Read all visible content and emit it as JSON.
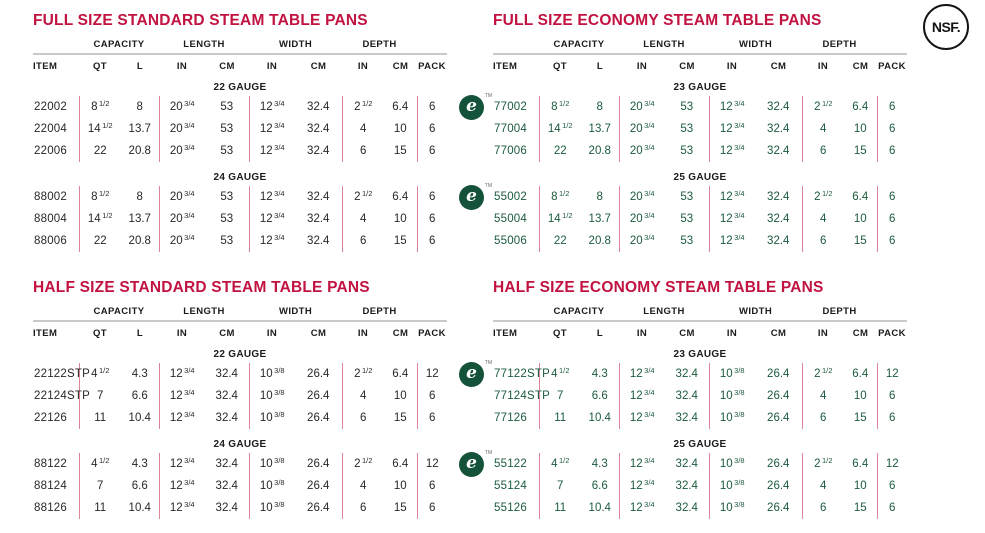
{
  "brand_colors": {
    "title_red": "#C11240",
    "economy_green": "#1B5B3D",
    "eco_badge_green": "#14523A",
    "divider_pink": "#DE8498",
    "rule_gray": "#C9C9CB",
    "text_dark": "#2B2728"
  },
  "nsf_badge": {
    "text": "NSF."
  },
  "eco_badge": {
    "letter": "e",
    "tm": "TM"
  },
  "headers": {
    "groups": [
      "CAPACITY",
      "LENGTH",
      "WIDTH",
      "DEPTH"
    ],
    "subs": [
      "ITEM",
      "QT",
      "L",
      "IN",
      "CM",
      "IN",
      "CM",
      "IN",
      "CM",
      "PACK"
    ]
  },
  "tables": [
    {
      "title": "FULL SIZE STANDARD STEAM TABLE PANS",
      "variant": "standard",
      "sections": [
        {
          "gauge": "22 GAUGE",
          "eco_badge": false,
          "rows": [
            [
              "22002",
              "8 1/2",
              "8",
              "20 3/4",
              "53",
              "12 3/4",
              "32.4",
              "2 1/2",
              "6.4",
              "6"
            ],
            [
              "22004",
              "14 1/2",
              "13.7",
              "20 3/4",
              "53",
              "12 3/4",
              "32.4",
              "4",
              "10",
              "6"
            ],
            [
              "22006",
              "22",
              "20.8",
              "20 3/4",
              "53",
              "12 3/4",
              "32.4",
              "6",
              "15",
              "6"
            ]
          ]
        },
        {
          "gauge": "24 GAUGE",
          "eco_badge": false,
          "rows": [
            [
              "88002",
              "8 1/2",
              "8",
              "20 3/4",
              "53",
              "12 3/4",
              "32.4",
              "2 1/2",
              "6.4",
              "6"
            ],
            [
              "88004",
              "14 1/2",
              "13.7",
              "20 3/4",
              "53",
              "12 3/4",
              "32.4",
              "4",
              "10",
              "6"
            ],
            [
              "88006",
              "22",
              "20.8",
              "20 3/4",
              "53",
              "12 3/4",
              "32.4",
              "6",
              "15",
              "6"
            ]
          ]
        }
      ]
    },
    {
      "title": "FULL SIZE ECONOMY STEAM TABLE PANS",
      "variant": "economy",
      "sections": [
        {
          "gauge": "23 GAUGE",
          "eco_badge": true,
          "rows": [
            [
              "77002",
              "8 1/2",
              "8",
              "20 3/4",
              "53",
              "12 3/4",
              "32.4",
              "2 1/2",
              "6.4",
              "6"
            ],
            [
              "77004",
              "14 1/2",
              "13.7",
              "20 3/4",
              "53",
              "12 3/4",
              "32.4",
              "4",
              "10",
              "6"
            ],
            [
              "77006",
              "22",
              "20.8",
              "20 3/4",
              "53",
              "12 3/4",
              "32.4",
              "6",
              "15",
              "6"
            ]
          ]
        },
        {
          "gauge": "25 GAUGE",
          "eco_badge": true,
          "rows": [
            [
              "55002",
              "8 1/2",
              "8",
              "20 3/4",
              "53",
              "12 3/4",
              "32.4",
              "2 1/2",
              "6.4",
              "6"
            ],
            [
              "55004",
              "14 1/2",
              "13.7",
              "20 3/4",
              "53",
              "12 3/4",
              "32.4",
              "4",
              "10",
              "6"
            ],
            [
              "55006",
              "22",
              "20.8",
              "20 3/4",
              "53",
              "12 3/4",
              "32.4",
              "6",
              "15",
              "6"
            ]
          ]
        }
      ]
    },
    {
      "title": "HALF SIZE STANDARD STEAM TABLE PANS",
      "variant": "standard",
      "sections": [
        {
          "gauge": "22 GAUGE",
          "eco_badge": false,
          "rows": [
            [
              "22122STP",
              "4 1/2",
              "4.3",
              "12 3/4",
              "32.4",
              "10 3/8",
              "26.4",
              "2 1/2",
              "6.4",
              "12"
            ],
            [
              "22124STP",
              "7",
              "6.6",
              "12 3/4",
              "32.4",
              "10 3/8",
              "26.4",
              "4",
              "10",
              "6"
            ],
            [
              "22126",
              "11",
              "10.4",
              "12 3/4",
              "32.4",
              "10 3/8",
              "26.4",
              "6",
              "15",
              "6"
            ]
          ]
        },
        {
          "gauge": "24 GAUGE",
          "eco_badge": false,
          "rows": [
            [
              "88122",
              "4 1/2",
              "4.3",
              "12 3/4",
              "32.4",
              "10 3/8",
              "26.4",
              "2 1/2",
              "6.4",
              "12"
            ],
            [
              "88124",
              "7",
              "6.6",
              "12 3/4",
              "32.4",
              "10 3/8",
              "26.4",
              "4",
              "10",
              "6"
            ],
            [
              "88126",
              "11",
              "10.4",
              "12 3/4",
              "32.4",
              "10 3/8",
              "26.4",
              "6",
              "15",
              "6"
            ]
          ]
        }
      ]
    },
    {
      "title": "HALF SIZE ECONOMY STEAM TABLE PANS",
      "variant": "economy",
      "sections": [
        {
          "gauge": "23 GAUGE",
          "eco_badge": true,
          "rows": [
            [
              "77122STP",
              "4 1/2",
              "4.3",
              "12 3/4",
              "32.4",
              "10 3/8",
              "26.4",
              "2 1/2",
              "6.4",
              "12"
            ],
            [
              "77124STP",
              "7",
              "6.6",
              "12 3/4",
              "32.4",
              "10 3/8",
              "26.4",
              "4",
              "10",
              "6"
            ],
            [
              "77126",
              "11",
              "10.4",
              "12 3/4",
              "32.4",
              "10 3/8",
              "26.4",
              "6",
              "15",
              "6"
            ]
          ]
        },
        {
          "gauge": "25 GAUGE",
          "eco_badge": true,
          "rows": [
            [
              "55122",
              "4 1/2",
              "4.3",
              "12 3/4",
              "32.4",
              "10 3/8",
              "26.4",
              "2 1/2",
              "6.4",
              "12"
            ],
            [
              "55124",
              "7",
              "6.6",
              "12 3/4",
              "32.4",
              "10 3/8",
              "26.4",
              "4",
              "10",
              "6"
            ],
            [
              "55126",
              "11",
              "10.4",
              "12 3/4",
              "32.4",
              "10 3/8",
              "26.4",
              "6",
              "15",
              "6"
            ]
          ]
        }
      ]
    }
  ]
}
